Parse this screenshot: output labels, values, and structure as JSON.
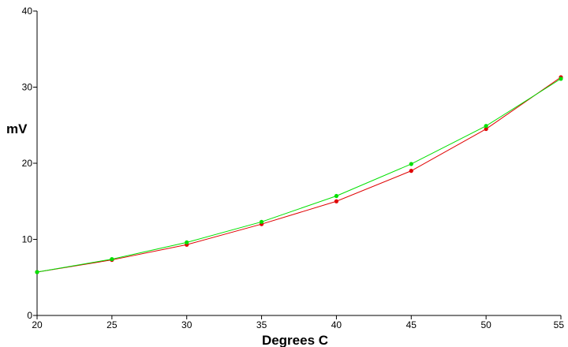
{
  "chart_data": {
    "type": "line",
    "title": "",
    "xlabel": "Degrees C",
    "ylabel": "mV",
    "xlim": [
      20,
      55
    ],
    "ylim": [
      0,
      40
    ],
    "x_ticks": [
      20,
      25,
      30,
      35,
      40,
      45,
      50,
      55
    ],
    "y_ticks": [
      0,
      10,
      20,
      30,
      40
    ],
    "grid": false,
    "legend": "none",
    "x": [
      20,
      25,
      30,
      35,
      40,
      45,
      50,
      55
    ],
    "series": [
      {
        "color": "#e00000",
        "values": [
          5.7,
          7.3,
          9.3,
          12.0,
          15.0,
          19.0,
          24.5,
          31.3
        ]
      },
      {
        "color": "#00e000",
        "values": [
          5.7,
          7.4,
          9.6,
          12.3,
          15.7,
          19.9,
          24.9,
          31.1
        ]
      }
    ]
  }
}
